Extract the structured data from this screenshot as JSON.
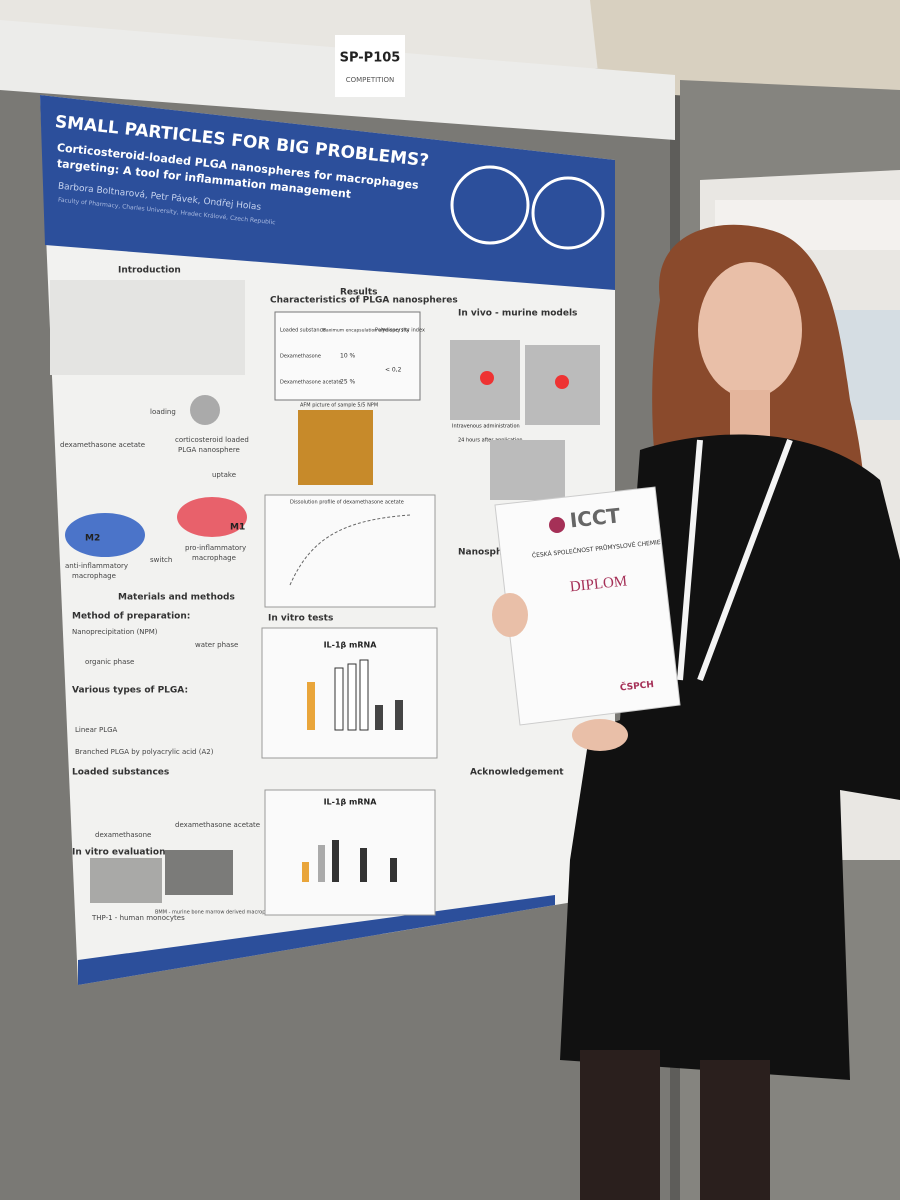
{
  "sign": {
    "code": "SP-P105",
    "label": "COMPETITION"
  },
  "poster": {
    "title": "SMALL PARTICLES FOR BIG PROBLEMS?",
    "subtitle": [
      "Corticosteroid-loaded PLGA nanospheres for macrophages",
      "targeting: A tool for inflammation management"
    ],
    "authors": "Barbora Boltnarová, Petr Pávek, Ondřej Holas",
    "affiliation": "Faculty of Pharmacy, Charles University, Hradec Králové, Czech Republic",
    "introduction": {
      "heading": "Introduction",
      "labels": [
        "dexamethasone acetate",
        "loading",
        "corticosteroid loaded",
        "PLGA nanosphere",
        "uptake",
        "switch",
        "M1",
        "M2",
        "anti-inflammatory",
        "macrophage",
        "pro-inflammatory",
        "macrophage"
      ]
    },
    "methods": {
      "heading": "Materials and methods",
      "items": [
        "Method of preparation:",
        "Nanoprecipitation (NPM)",
        "organic phase",
        "water phase",
        "Various types of PLGA:",
        "Linear PLGA",
        "Branched PLGA by polyacrylic acid (A2)",
        "Loaded substances",
        "dexamethasone",
        "dexamethasone acetate",
        "In vitro evaluation",
        "THP-1 - human monocytes",
        "BMM - murine bone marrow derived macrophages"
      ]
    },
    "results": {
      "heading": "Results",
      "characteristics": "Characteristics of PLGA nanospheres",
      "table": {
        "header": [
          "Loaded substance",
          "Maximum encapsulation efficiency (%)",
          "Polydispersity index"
        ],
        "rows": [
          [
            "Dexamethasone",
            "10 %",
            "< 0,2"
          ],
          [
            "Dexamethasone acetate",
            "25 %",
            ""
          ]
        ]
      },
      "afm": "AFM picture of sample 5/5 NPM",
      "dissolution": "Dissolution profile of dexamethasone acetate",
      "in_vitro": "In vitro tests",
      "chart_titles": [
        "IL-1β mRNA",
        "IL-1β mRNA"
      ],
      "in_vivo": "In vivo - murine models",
      "in_vivo_labels": [
        "Intravenous administration",
        "24 hours after application"
      ],
      "nanospheres": "Nanospheres:",
      "acknowledgement": "Acknowledgement"
    }
  },
  "diploma": {
    "logo": "ICCT",
    "society": "ČESKÁ SPOLEČNOST PRŮMYSLOVÉ CHEMIE",
    "title": "DIPLOM",
    "footer_logo": "ČSPCH"
  }
}
